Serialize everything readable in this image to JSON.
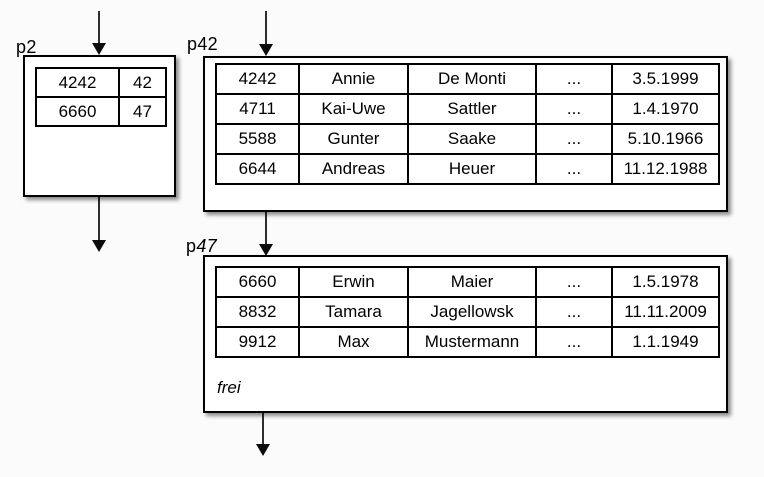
{
  "colors": {
    "background": "#fbfbfb",
    "box_fill": "#ffffff",
    "border": "#000000",
    "arrow": "#2e2e2e",
    "text": "#000000"
  },
  "arrows": [
    {
      "name": "arrow-into-p2",
      "direction": "down"
    },
    {
      "name": "arrow-into-p42",
      "direction": "down"
    },
    {
      "name": "arrow-out-of-p2",
      "direction": "down"
    },
    {
      "name": "arrow-p42-to-p47",
      "direction": "down"
    },
    {
      "name": "arrow-out-of-p47",
      "direction": "down"
    }
  ],
  "pages": [
    {
      "label": {
        "prefix": "p",
        "num": "2"
      },
      "rows": [
        [
          "4242",
          "42"
        ],
        [
          "6660",
          "47"
        ]
      ]
    },
    {
      "label": {
        "prefix": "p",
        "num": "42"
      },
      "rows": [
        [
          "4242",
          "Annie",
          "De Monti",
          "...",
          "3.5.1999"
        ],
        [
          "4711",
          "Kai-Uwe",
          "Sattler",
          "...",
          "1.4.1970"
        ],
        [
          "5588",
          "Gunter",
          "Saake",
          "...",
          "5.10.1966"
        ],
        [
          "6644",
          "Andreas",
          "Heuer",
          "...",
          "11.12.1988"
        ]
      ]
    },
    {
      "label": {
        "prefix": "p",
        "num": "47"
      },
      "rows": [
        [
          "6660",
          "Erwin",
          "Maier",
          "...",
          "1.5.1978"
        ],
        [
          "8832",
          "Tamara",
          "Jagellowsk",
          "...",
          "11.11.2009"
        ],
        [
          "9912",
          "Max",
          "Mustermann",
          "...",
          "1.1.1949"
        ]
      ],
      "free_label": "frei"
    }
  ]
}
